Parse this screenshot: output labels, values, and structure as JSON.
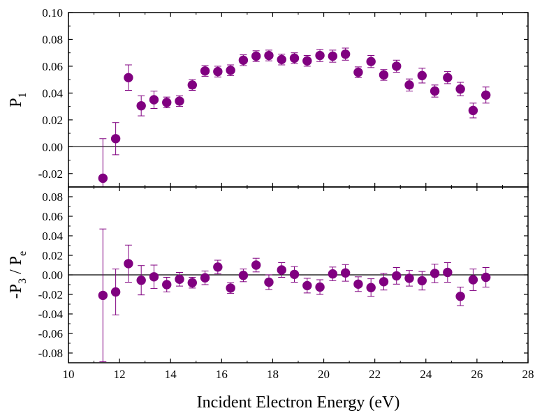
{
  "chart_data": [
    {
      "type": "scatter",
      "panel": "top",
      "ylabel": "P",
      "ylabel_sub": "1",
      "xlim": [
        10,
        28
      ],
      "ylim": [
        -0.03,
        0.1
      ],
      "xticks": [
        "10",
        "12",
        "14",
        "16",
        "18",
        "20",
        "22",
        "24",
        "26",
        "28"
      ],
      "yticks": [
        "-0.02",
        "0.00",
        "0.02",
        "0.04",
        "0.06",
        "0.08",
        "0.10"
      ],
      "reference_line": 0,
      "marker_color": "#800080",
      "grid": false,
      "series": [
        {
          "x": [
            11.35,
            11.85,
            12.35,
            12.85,
            13.35,
            13.85,
            14.35,
            14.85,
            15.35,
            15.85,
            16.35,
            16.85,
            17.35,
            17.85,
            18.35,
            18.85,
            19.35,
            19.85,
            20.35,
            20.85,
            21.35,
            21.85,
            22.35,
            22.85,
            23.35,
            23.85,
            24.35,
            24.85,
            25.35,
            25.85,
            26.35
          ],
          "y": [
            -0.0235,
            0.006,
            0.0515,
            0.0305,
            0.035,
            0.033,
            0.034,
            0.046,
            0.0565,
            0.056,
            0.057,
            0.0645,
            0.0675,
            0.068,
            0.065,
            0.066,
            0.064,
            0.068,
            0.0675,
            0.069,
            0.0555,
            0.0635,
            0.0535,
            0.06,
            0.046,
            0.053,
            0.0415,
            0.0515,
            0.043,
            0.027,
            0.0385
          ],
          "err": [
            0.0295,
            0.012,
            0.0095,
            0.0075,
            0.0065,
            0.004,
            0.004,
            0.004,
            0.004,
            0.004,
            0.004,
            0.004,
            0.004,
            0.004,
            0.004,
            0.004,
            0.004,
            0.0045,
            0.0045,
            0.0045,
            0.004,
            0.0045,
            0.004,
            0.0045,
            0.0045,
            0.0055,
            0.0045,
            0.0045,
            0.005,
            0.0055,
            0.006
          ]
        }
      ]
    },
    {
      "type": "scatter",
      "panel": "bottom",
      "ylabel": "-P",
      "ylabel_sub": "3",
      "ylabel_mid": " / P",
      "ylabel_sub2": "e",
      "xlabel": "Incident Electron Energy (eV)",
      "xlim": [
        10,
        28
      ],
      "ylim": [
        -0.09,
        0.09
      ],
      "xticks": [
        "10",
        "12",
        "14",
        "16",
        "18",
        "20",
        "22",
        "24",
        "26",
        "28"
      ],
      "yticks": [
        "-0.08",
        "-0.06",
        "-0.04",
        "-0.02",
        "0.00",
        "0.02",
        "0.04",
        "0.06",
        "0.08"
      ],
      "reference_line": 0,
      "marker_color": "#800080",
      "grid": false,
      "series": [
        {
          "x": [
            11.35,
            11.85,
            12.35,
            12.85,
            13.35,
            13.85,
            14.35,
            14.85,
            15.35,
            15.85,
            16.35,
            16.85,
            17.35,
            17.85,
            18.35,
            18.85,
            19.35,
            19.85,
            20.35,
            20.85,
            21.35,
            21.85,
            22.35,
            22.85,
            23.35,
            23.85,
            24.35,
            24.85,
            25.35,
            25.85,
            26.35
          ],
          "y": [
            -0.021,
            -0.0175,
            0.0115,
            -0.0055,
            -0.002,
            -0.01,
            -0.0045,
            -0.008,
            -0.003,
            0.008,
            -0.0135,
            -0.0005,
            0.01,
            -0.0075,
            0.005,
            0.0005,
            -0.011,
            -0.0125,
            0.001,
            0.002,
            -0.0095,
            -0.013,
            -0.007,
            -0.001,
            -0.0035,
            -0.006,
            0.0015,
            0.0025,
            -0.022,
            -0.005,
            -0.0025
          ],
          "err": [
            0.068,
            0.0235,
            0.019,
            0.015,
            0.012,
            0.0075,
            0.007,
            0.0055,
            0.007,
            0.007,
            0.0055,
            0.0065,
            0.007,
            0.0075,
            0.0075,
            0.008,
            0.0075,
            0.0075,
            0.007,
            0.0085,
            0.0075,
            0.009,
            0.0085,
            0.0085,
            0.008,
            0.0095,
            0.0095,
            0.01,
            0.0095,
            0.011,
            0.01
          ]
        }
      ]
    }
  ]
}
